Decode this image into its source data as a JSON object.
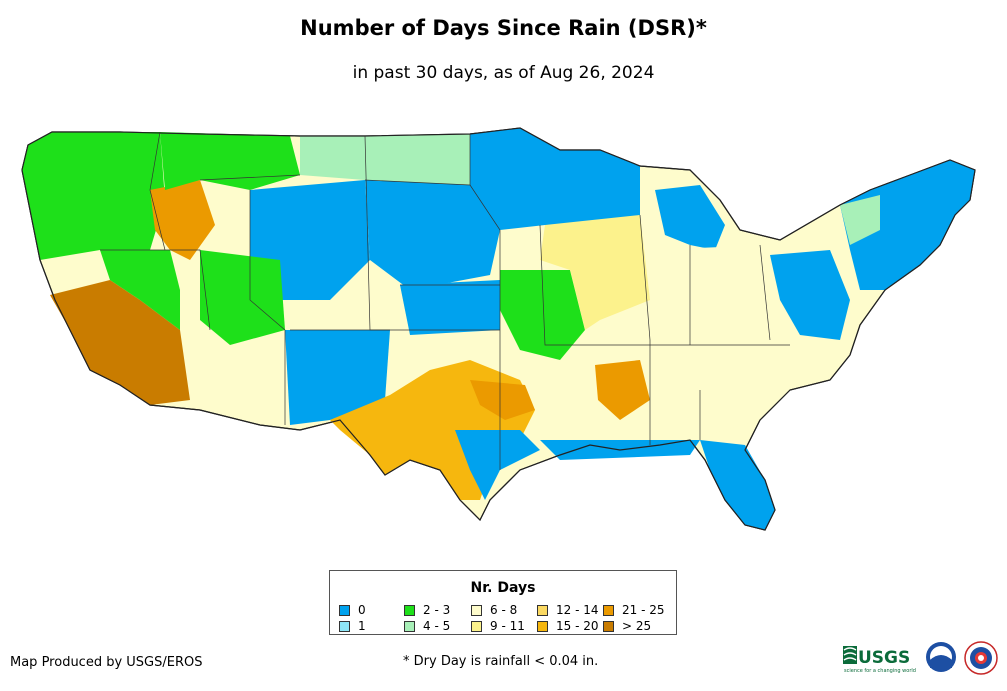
{
  "title": "Number of Days Since Rain (DSR)*",
  "subtitle": "in past 30 days, as of Aug 26, 2024",
  "legend": {
    "title": "Nr. Days",
    "items": [
      {
        "label": "0",
        "color": "#00a2ee"
      },
      {
        "label": "1",
        "color": "#8ee6f6"
      },
      {
        "label": "2 - 3",
        "color": "#1ee01a"
      },
      {
        "label": "4 - 5",
        "color": "#a8f0b8"
      },
      {
        "label": "6 - 8",
        "color": "#fefccc"
      },
      {
        "label": "9 - 11",
        "color": "#fcf28c"
      },
      {
        "label": "12 - 14",
        "color": "#fbd962"
      },
      {
        "label": "15 - 20",
        "color": "#f6b70e"
      },
      {
        "label": "21 - 25",
        "color": "#eb9a00"
      },
      {
        "label": "> 25",
        "color": "#c97c00"
      }
    ]
  },
  "footer": {
    "credit": "Map Produced by USGS/EROS",
    "note": "* Dry Day is rainfall < 0.04 in."
  },
  "logos": {
    "usgs_text": "USGS",
    "usgs_tagline": "science for a changing world",
    "names": [
      "usgs-logo",
      "noaa-logo",
      "nws-logo"
    ]
  },
  "map": {
    "subject": "Contiguous United States",
    "regions": [
      {
        "name": "pacific-northwest",
        "category": "2 - 3"
      },
      {
        "name": "california-southwest",
        "category": "> 25"
      },
      {
        "name": "great-basin",
        "category": "2 - 3"
      },
      {
        "name": "idaho-snake-river",
        "category": "21 - 25"
      },
      {
        "name": "colorado-wyoming",
        "category": "0"
      },
      {
        "name": "northern-plains",
        "category": "0"
      },
      {
        "name": "upper-midwest",
        "category": "0"
      },
      {
        "name": "missouri-kansas",
        "category": "2 - 3"
      },
      {
        "name": "ohio-valley",
        "category": "6 - 8"
      },
      {
        "name": "midwest-central",
        "category": "9 - 11"
      },
      {
        "name": "texas",
        "category": "15 - 20"
      },
      {
        "name": "south-texas-coast",
        "category": "0"
      },
      {
        "name": "southeast",
        "category": "6 - 8"
      },
      {
        "name": "florida-gulf-coast",
        "category": "0"
      },
      {
        "name": "northeast",
        "category": "0"
      },
      {
        "name": "mid-atlantic",
        "category": "6 - 8"
      },
      {
        "name": "new-mexico-arizona",
        "category": "0"
      }
    ]
  }
}
